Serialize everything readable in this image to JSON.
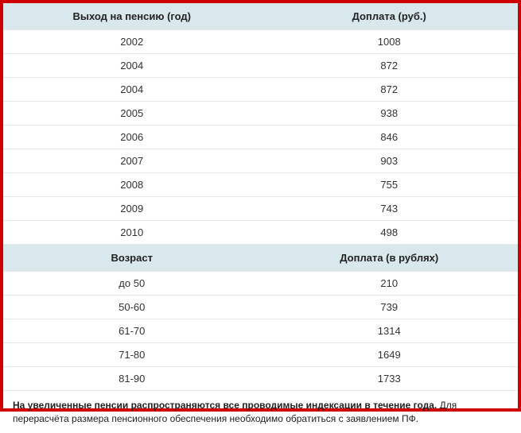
{
  "table1": {
    "header_left": "Выход на пенсию (год)",
    "header_right": "Доплата (руб.)",
    "rows": [
      {
        "left": "2002",
        "right": "1008"
      },
      {
        "left": "2004",
        "right": "872"
      },
      {
        "left": "2004",
        "right": "872"
      },
      {
        "left": "2005",
        "right": "938"
      },
      {
        "left": "2006",
        "right": "846"
      },
      {
        "left": "2007",
        "right": "903"
      },
      {
        "left": "2008",
        "right": "755"
      },
      {
        "left": "2009",
        "right": "743"
      },
      {
        "left": "2010",
        "right": "498"
      }
    ]
  },
  "table2": {
    "header_left": "Возраст",
    "header_right": "Доплата (в рублях)",
    "rows": [
      {
        "left": "до 50",
        "right": "210"
      },
      {
        "left": "50-60",
        "right": "739"
      },
      {
        "left": "61-70",
        "right": "1314"
      },
      {
        "left": "71-80",
        "right": "1649"
      },
      {
        "left": "81-90",
        "right": "1733"
      }
    ]
  },
  "footer": {
    "bold": "На увеличенные пенсии распространяются все проводимые индексации в течение года.",
    "rest": " Для перерасчёта размера пенсионного обеспечения необходимо обратиться с заявлением ПФ."
  },
  "style": {
    "border_color": "#d10000",
    "header_bg": "#d9e8ed",
    "row_border": "#e8e8e8",
    "text_color": "#333333",
    "font_size_table": 13,
    "font_size_footer": 12
  }
}
